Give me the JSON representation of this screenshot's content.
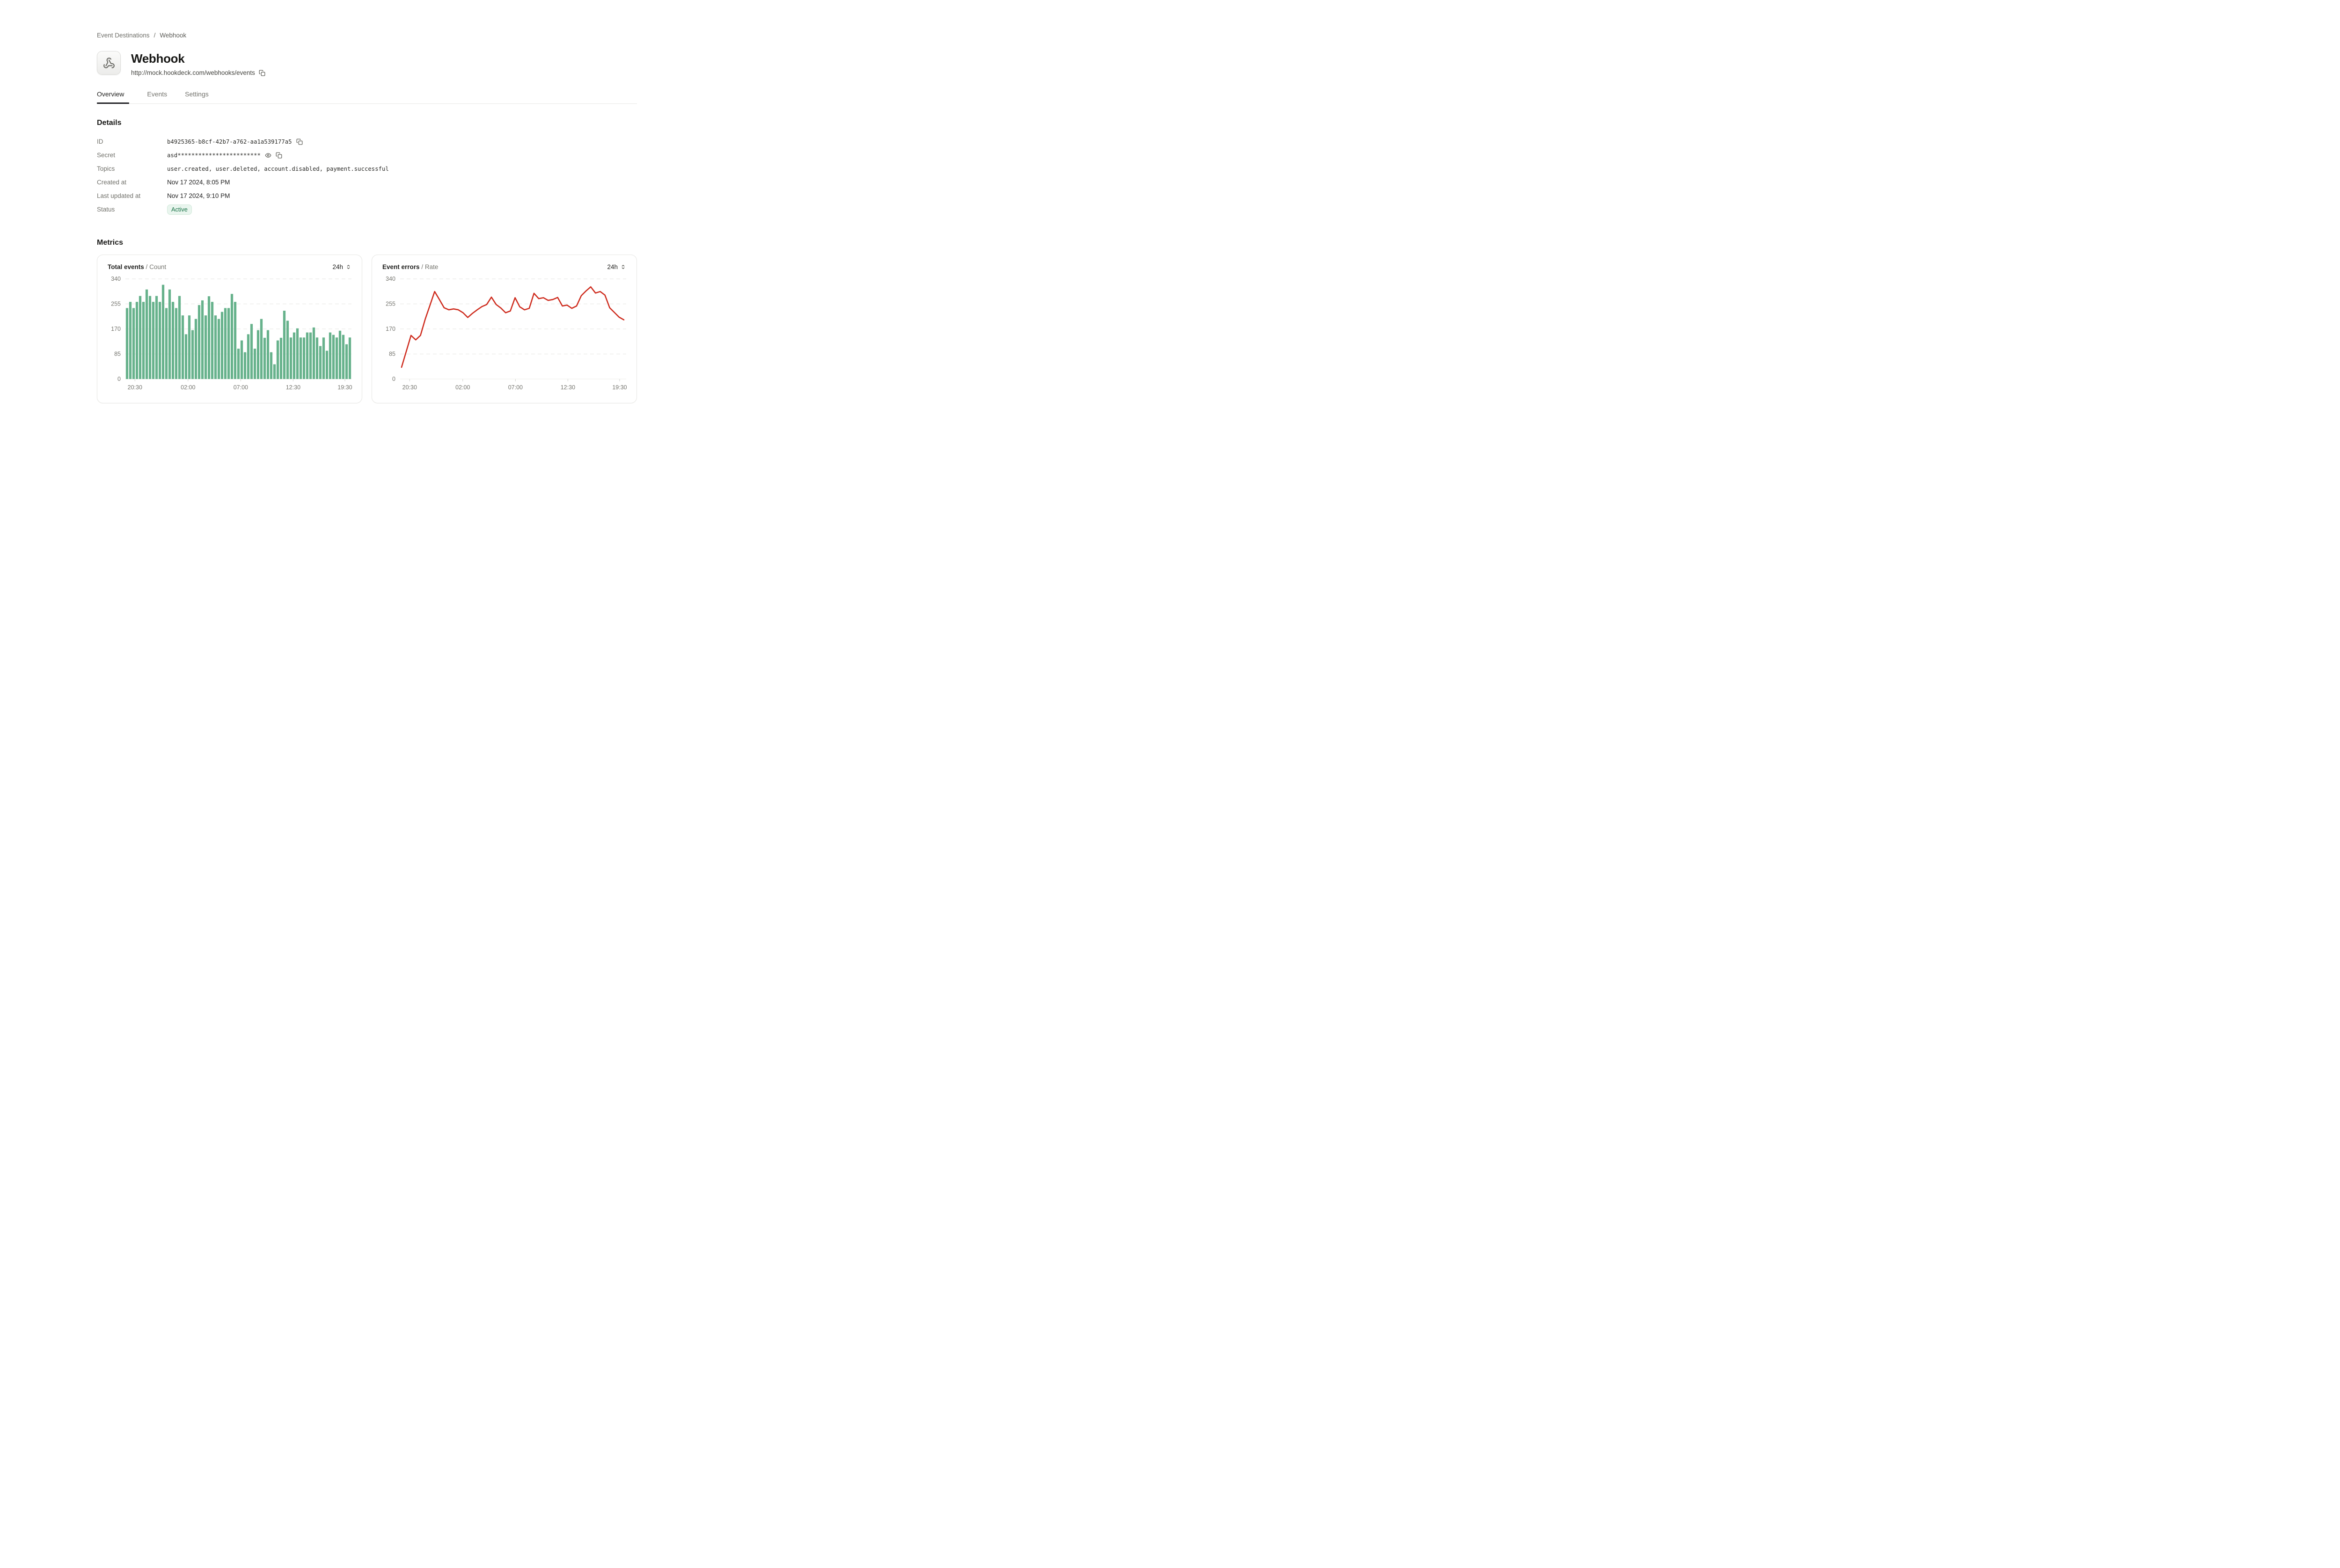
{
  "breadcrumb": {
    "items": [
      "Event Destinations",
      "Webhook"
    ],
    "separator": "/"
  },
  "header": {
    "title": "Webhook",
    "url": "http://mock.hookdeck.com/webhooks/events",
    "icon": "webhook-icon"
  },
  "tabs": [
    {
      "label": "Overview",
      "active": true
    },
    {
      "label": "Events",
      "active": false
    },
    {
      "label": "Settings",
      "active": false
    }
  ],
  "details": {
    "heading": "Details",
    "rows": [
      {
        "label": "ID",
        "value": "b4925365-b8cf-42b7-a762-aa1a539177a5"
      },
      {
        "label": "Secret",
        "value": "asd************************"
      },
      {
        "label": "Topics",
        "value": "user.created, user.deleted, account.disabled, payment.successful"
      },
      {
        "label": "Created at",
        "value": "Nov 17 2024, 8:05 PM"
      },
      {
        "label": "Last updated at",
        "value": "Nov 17 2024, 9:10 PM"
      },
      {
        "label": "Status",
        "badge": "Active"
      }
    ]
  },
  "metrics": {
    "heading": "Metrics"
  },
  "colors": {
    "bar_green": "#67b28c",
    "line_red": "#ce2b1d",
    "grid": "#e4e4e1",
    "axis_label": "#74746e",
    "badge_green_text": "#177245",
    "badge_green_bg": "#e9f5ee"
  },
  "chart_data": [
    {
      "type": "bar",
      "title": "Total events",
      "subtitle": "Count",
      "separator": "/",
      "range": "24h",
      "color": "#67b28c",
      "ylim": [
        0,
        340
      ],
      "yticks": [
        0,
        85,
        170,
        255,
        340
      ],
      "xticks": [
        "20:30",
        "02:00",
        "07:00",
        "12:30",
        "19:30"
      ],
      "values": [
        241,
        262,
        241,
        262,
        282,
        262,
        304,
        282,
        262,
        282,
        262,
        320,
        241,
        304,
        262,
        241,
        282,
        216,
        152,
        216,
        166,
        204,
        251,
        267,
        216,
        281,
        262,
        216,
        204,
        228,
        241,
        241,
        289,
        262,
        103,
        131,
        91,
        152,
        187,
        103,
        166,
        204,
        140,
        166,
        91,
        50,
        131,
        140,
        232,
        198,
        141,
        158,
        172,
        141,
        141,
        158,
        158,
        175,
        141,
        112,
        141,
        96,
        158,
        150,
        141,
        164,
        150,
        118,
        141
      ]
    },
    {
      "type": "line",
      "title": "Event errors",
      "subtitle": "Rate",
      "separator": "/",
      "range": "24h",
      "color": "#ce2b1d",
      "ylim": [
        0,
        340
      ],
      "yticks": [
        0,
        85,
        170,
        255,
        340
      ],
      "xticks": [
        "20:30",
        "02:00",
        "07:00",
        "12:30",
        "19:30"
      ],
      "values": [
        40,
        94,
        148,
        133,
        148,
        203,
        250,
        297,
        270,
        242,
        235,
        238,
        235,
        225,
        209,
        223,
        235,
        246,
        253,
        278,
        253,
        241,
        225,
        231,
        276,
        245,
        235,
        240,
        291,
        273,
        276,
        267,
        270,
        277,
        248,
        251,
        240,
        248,
        283,
        299,
        313,
        292,
        297,
        285,
        242,
        226,
        210,
        201
      ]
    }
  ]
}
